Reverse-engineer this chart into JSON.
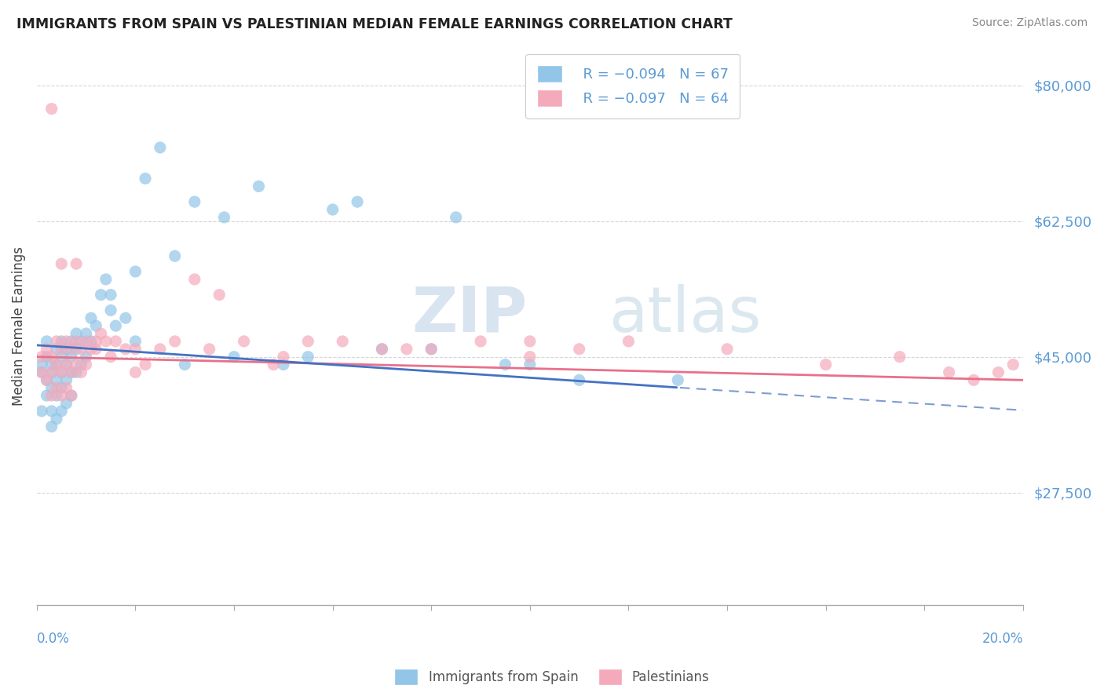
{
  "title": "IMMIGRANTS FROM SPAIN VS PALESTINIAN MEDIAN FEMALE EARNINGS CORRELATION CHART",
  "source": "Source: ZipAtlas.com",
  "ylabel": "Median Female Earnings",
  "yticks": [
    27500,
    45000,
    62500,
    80000
  ],
  "ytick_labels": [
    "$27,500",
    "$45,000",
    "$62,500",
    "$80,000"
  ],
  "xmin": 0.0,
  "xmax": 0.2,
  "ymin": 13000,
  "ymax": 85000,
  "blue_color": "#92C5E8",
  "pink_color": "#F4AABB",
  "line_blue": "#4472C4",
  "line_pink": "#E8708A",
  "legend_label1": "Immigrants from Spain",
  "legend_label2": "Palestinians",
  "watermark_zip": "ZIP",
  "watermark_atlas": "atlas",
  "spain_x": [
    0.001,
    0.001,
    0.001,
    0.002,
    0.002,
    0.002,
    0.002,
    0.003,
    0.003,
    0.003,
    0.003,
    0.003,
    0.004,
    0.004,
    0.004,
    0.004,
    0.004,
    0.005,
    0.005,
    0.005,
    0.005,
    0.005,
    0.006,
    0.006,
    0.006,
    0.006,
    0.007,
    0.007,
    0.007,
    0.007,
    0.008,
    0.008,
    0.008,
    0.009,
    0.009,
    0.01,
    0.01,
    0.011,
    0.011,
    0.012,
    0.013,
    0.014,
    0.015,
    0.016,
    0.018,
    0.02,
    0.022,
    0.025,
    0.028,
    0.032,
    0.038,
    0.045,
    0.055,
    0.065,
    0.08,
    0.095,
    0.11,
    0.13,
    0.015,
    0.02,
    0.03,
    0.04,
    0.05,
    0.06,
    0.07,
    0.085,
    0.1
  ],
  "spain_y": [
    44000,
    43000,
    38000,
    47000,
    45000,
    42000,
    40000,
    44000,
    43000,
    41000,
    38000,
    36000,
    46000,
    44000,
    42000,
    40000,
    37000,
    47000,
    45000,
    43000,
    41000,
    38000,
    46000,
    44000,
    42000,
    39000,
    47000,
    45000,
    43000,
    40000,
    48000,
    46000,
    43000,
    47000,
    44000,
    48000,
    45000,
    50000,
    47000,
    49000,
    53000,
    55000,
    51000,
    49000,
    50000,
    47000,
    68000,
    72000,
    58000,
    65000,
    63000,
    67000,
    45000,
    65000,
    46000,
    44000,
    42000,
    42000,
    53000,
    56000,
    44000,
    45000,
    44000,
    64000,
    46000,
    63000,
    44000
  ],
  "palest_x": [
    0.001,
    0.001,
    0.002,
    0.002,
    0.003,
    0.003,
    0.003,
    0.004,
    0.004,
    0.004,
    0.005,
    0.005,
    0.005,
    0.006,
    0.006,
    0.006,
    0.007,
    0.007,
    0.007,
    0.008,
    0.008,
    0.009,
    0.009,
    0.01,
    0.01,
    0.011,
    0.012,
    0.013,
    0.014,
    0.015,
    0.016,
    0.018,
    0.02,
    0.022,
    0.025,
    0.028,
    0.032,
    0.037,
    0.042,
    0.048,
    0.055,
    0.062,
    0.07,
    0.08,
    0.09,
    0.1,
    0.11,
    0.12,
    0.14,
    0.16,
    0.175,
    0.185,
    0.19,
    0.195,
    0.198,
    0.003,
    0.005,
    0.008,
    0.012,
    0.02,
    0.035,
    0.05,
    0.075,
    0.1
  ],
  "palest_y": [
    45000,
    43000,
    46000,
    42000,
    45000,
    43000,
    40000,
    47000,
    44000,
    41000,
    46000,
    43000,
    40000,
    47000,
    44000,
    41000,
    46000,
    43000,
    40000,
    47000,
    44000,
    46000,
    43000,
    47000,
    44000,
    46000,
    47000,
    48000,
    47000,
    45000,
    47000,
    46000,
    43000,
    44000,
    46000,
    47000,
    55000,
    53000,
    47000,
    44000,
    47000,
    47000,
    46000,
    46000,
    47000,
    47000,
    46000,
    47000,
    46000,
    44000,
    45000,
    43000,
    42000,
    43000,
    44000,
    77000,
    57000,
    57000,
    46000,
    46000,
    46000,
    45000,
    46000,
    45000
  ]
}
